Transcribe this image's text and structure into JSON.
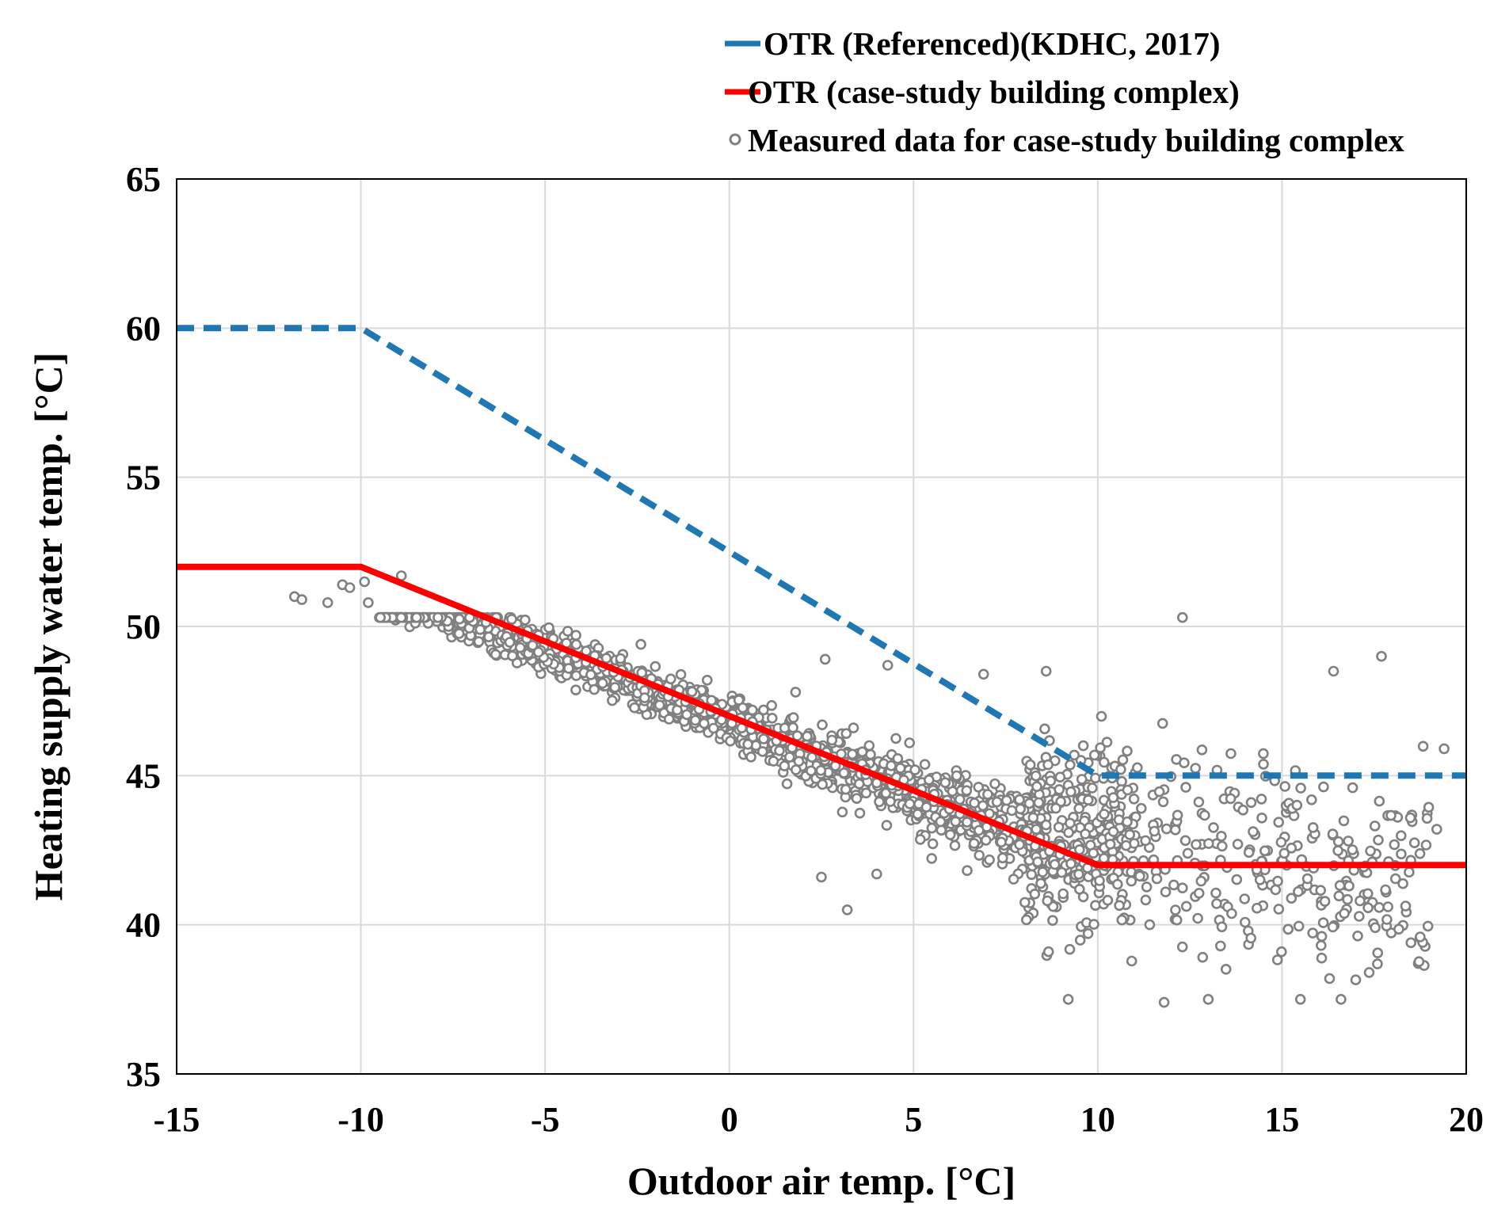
{
  "chart_data": {
    "type": "scatter",
    "xlabel": "Outdoor air temp. [°C]",
    "ylabel": "Heating supply water temp. [°C]",
    "xlim": [
      -15,
      20
    ],
    "ylim": [
      35,
      65
    ],
    "xticks": [
      -15,
      -10,
      -5,
      0,
      5,
      10,
      15,
      20
    ],
    "yticks": [
      35,
      40,
      45,
      50,
      55,
      60,
      65
    ],
    "xtick_labels": [
      "-15",
      "-10",
      "-5",
      "0",
      "5",
      "10",
      "15",
      "20"
    ],
    "ytick_labels": [
      "35",
      "40",
      "45",
      "50",
      "55",
      "60",
      "65"
    ],
    "grid": true,
    "legend_position": "top-right, above plot",
    "series": [
      {
        "name": "OTR (Referenced)(KDHC, 2017)",
        "kind": "line",
        "style": "dashed",
        "color": "#1f77b4",
        "x": [
          -15,
          -10,
          10,
          20
        ],
        "y": [
          60,
          60,
          45,
          45
        ]
      },
      {
        "name": "OTR (case-study building complex)",
        "kind": "line",
        "style": "solid",
        "color": "#ff0000",
        "x": [
          -15,
          -10,
          10,
          20
        ],
        "y": [
          52,
          52,
          42,
          42
        ]
      },
      {
        "name": "Measured data for case-study building complex",
        "kind": "scatter",
        "color": "#808080",
        "approx_point_count": 2000,
        "sample_points": [
          [
            -11.8,
            51.0
          ],
          [
            -11.6,
            50.9
          ],
          [
            -10.9,
            50.8
          ],
          [
            -10.5,
            51.4
          ],
          [
            -10.3,
            51.3
          ],
          [
            -9.9,
            51.5
          ],
          [
            -9.8,
            50.8
          ],
          [
            -8.9,
            51.7
          ],
          [
            -2.4,
            49.4
          ],
          [
            -0.6,
            48.2
          ],
          [
            1.8,
            47.8
          ],
          [
            2.6,
            48.9
          ],
          [
            4.3,
            48.7
          ],
          [
            6.9,
            48.4
          ],
          [
            8.6,
            48.5
          ],
          [
            12.3,
            50.3
          ],
          [
            16.4,
            48.5
          ],
          [
            17.7,
            49.0
          ],
          [
            19.4,
            45.9
          ],
          [
            19.2,
            43.2
          ],
          [
            18.5,
            39.4
          ],
          [
            18.7,
            38.7
          ],
          [
            2.5,
            41.6
          ],
          [
            3.2,
            40.5
          ],
          [
            4.0,
            41.7
          ],
          [
            9.2,
            37.5
          ],
          [
            11.8,
            37.4
          ],
          [
            13.0,
            37.5
          ],
          [
            15.5,
            37.5
          ],
          [
            16.6,
            37.5
          ]
        ]
      }
    ]
  }
}
